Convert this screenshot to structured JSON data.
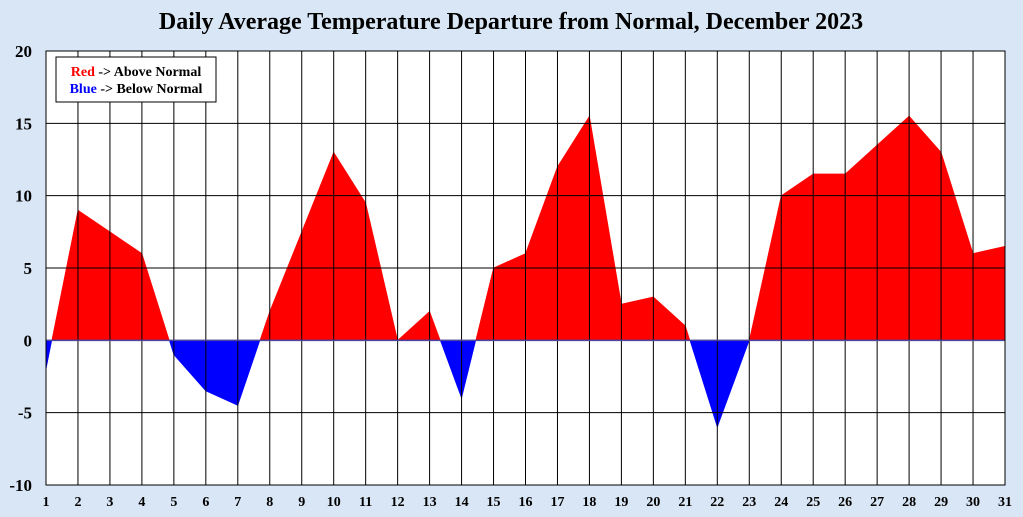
{
  "chart_data": {
    "type": "area",
    "title": "Daily Average Temperature Departure from Normal, December 2023",
    "xlabel": "",
    "ylabel": "",
    "x": [
      1,
      2,
      3,
      4,
      5,
      6,
      7,
      8,
      9,
      10,
      11,
      12,
      13,
      14,
      15,
      16,
      17,
      18,
      19,
      20,
      21,
      22,
      23,
      24,
      25,
      26,
      27,
      28,
      29,
      30,
      31
    ],
    "values": [
      -2,
      9,
      7.5,
      6,
      -1,
      -3.5,
      -4.5,
      2,
      7.5,
      13,
      9.5,
      0,
      2,
      -4,
      5,
      6,
      12,
      15.5,
      2.5,
      3,
      1,
      -6,
      0,
      10,
      11.5,
      11.5,
      13.5,
      15.5,
      13,
      6,
      6.5
    ],
    "ylim": [
      -10,
      20
    ],
    "yticks": [
      -10,
      -5,
      0,
      5,
      10,
      15,
      20
    ],
    "grid": true,
    "legend": {
      "position": "top-left",
      "entries": [
        {
          "key": "Red",
          "text": " -> Above Normal",
          "color": "#ff0000"
        },
        {
          "key": "Blue",
          "text": " -> Below Normal",
          "color": "#0000ff"
        }
      ]
    },
    "colors": {
      "above": "#ff0000",
      "below": "#0000ff",
      "background": "#d9e6f5",
      "plot_bg": "#ffffff"
    }
  }
}
